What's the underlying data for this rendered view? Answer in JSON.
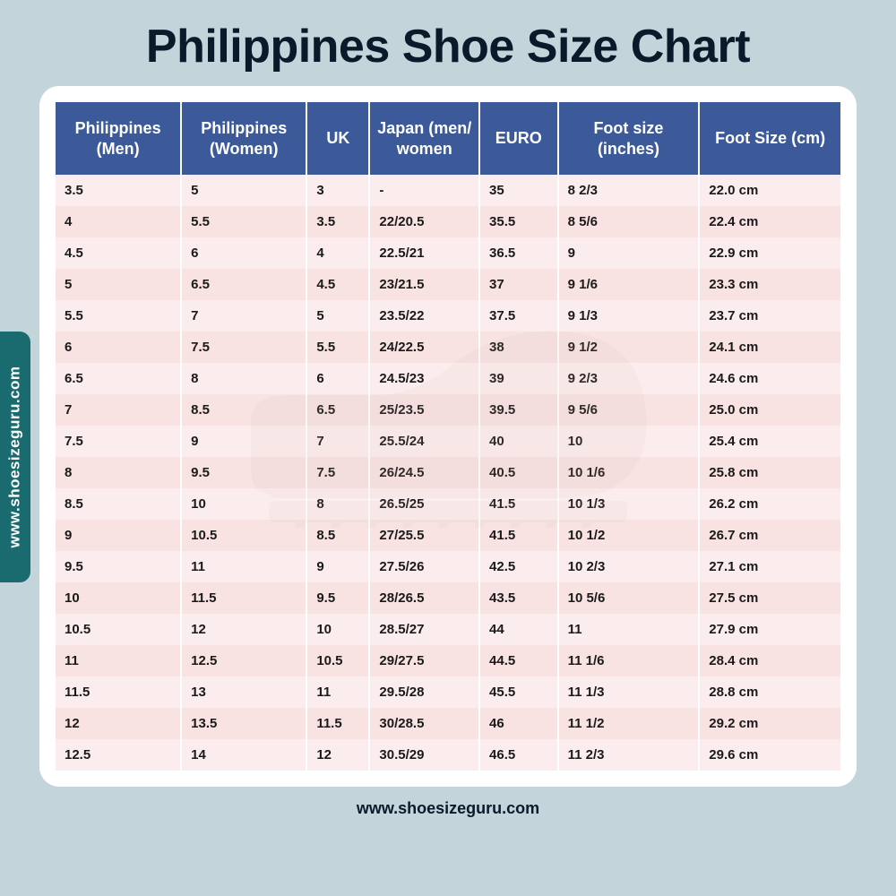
{
  "title": "Philippines Shoe Size Chart",
  "side_label": "www.shoesizeguru.com",
  "footer": "www.shoesizeguru.com",
  "colors": {
    "page_bg": "#c3d5db",
    "card_bg": "#ffffff",
    "header_bg": "#3c5a99",
    "header_text": "#ffffff",
    "row_odd": "#fbeded",
    "row_even": "#f8e2e2",
    "cell_text": "#1a1a1a",
    "title_text": "#0a1a2a",
    "side_tab_bg": "#1a6b70",
    "side_tab_text": "#ffffff",
    "watermark": "#d9b8b8"
  },
  "typography": {
    "title_fontsize": 52,
    "title_weight": 900,
    "header_fontsize": 18,
    "cell_fontsize": 15,
    "footer_fontsize": 18
  },
  "table": {
    "type": "table",
    "columns": [
      {
        "label": "Philippines (Men)",
        "width_pct": 16
      },
      {
        "label": "Philippines (Women)",
        "width_pct": 16
      },
      {
        "label": "UK",
        "width_pct": 8
      },
      {
        "label": "Japan (men/ women",
        "width_pct": 14
      },
      {
        "label": "EURO",
        "width_pct": 10
      },
      {
        "label": "Foot size (inches)",
        "width_pct": 18
      },
      {
        "label": "Foot Size (cm)",
        "width_pct": 18
      }
    ],
    "rows": [
      [
        "3.5",
        "5",
        "3",
        "-",
        "35",
        "8 2/3",
        "22.0 cm"
      ],
      [
        "4",
        "5.5",
        "3.5",
        "22/20.5",
        "35.5",
        "8 5/6",
        "22.4 cm"
      ],
      [
        "4.5",
        "6",
        "4",
        "22.5/21",
        "36.5",
        "9",
        "22.9 cm"
      ],
      [
        "5",
        "6.5",
        "4.5",
        "23/21.5",
        "37",
        "9 1/6",
        "23.3 cm"
      ],
      [
        "5.5",
        "7",
        "5",
        "23.5/22",
        "37.5",
        "9 1/3",
        "23.7 cm"
      ],
      [
        "6",
        "7.5",
        "5.5",
        "24/22.5",
        "38",
        "9 1/2",
        "24.1 cm"
      ],
      [
        "6.5",
        "8",
        "6",
        "24.5/23",
        "39",
        "9 2/3",
        "24.6 cm"
      ],
      [
        "7",
        "8.5",
        "6.5",
        "25/23.5",
        "39.5",
        "9 5/6",
        "25.0 cm"
      ],
      [
        "7.5",
        "9",
        "7",
        "25.5/24",
        "40",
        "10",
        "25.4 cm"
      ],
      [
        "8",
        "9.5",
        "7.5",
        "26/24.5",
        "40.5",
        "10 1/6",
        "25.8 cm"
      ],
      [
        "8.5",
        "10",
        "8",
        "26.5/25",
        "41.5",
        "10 1/3",
        "26.2 cm"
      ],
      [
        "9",
        "10.5",
        "8.5",
        "27/25.5",
        "41.5",
        "10 1/2",
        "26.7 cm"
      ],
      [
        "9.5",
        "11",
        "9",
        "27.5/26",
        "42.5",
        "10 2/3",
        "27.1 cm"
      ],
      [
        "10",
        "11.5",
        "9.5",
        "28/26.5",
        "43.5",
        "10 5/6",
        "27.5 cm"
      ],
      [
        "10.5",
        "12",
        "10",
        "28.5/27",
        "44",
        "11",
        "27.9 cm"
      ],
      [
        "11",
        "12.5",
        "10.5",
        "29/27.5",
        "44.5",
        "11 1/6",
        "28.4 cm"
      ],
      [
        "11.5",
        "13",
        "11",
        "29.5/28",
        "45.5",
        "11 1/3",
        "28.8 cm"
      ],
      [
        "12",
        "13.5",
        "11.5",
        "30/28.5",
        "46",
        "11 1/2",
        "29.2 cm"
      ],
      [
        "12.5",
        "14",
        "12",
        "30.5/29",
        "46.5",
        "11 2/3",
        "29.6 cm"
      ]
    ]
  }
}
